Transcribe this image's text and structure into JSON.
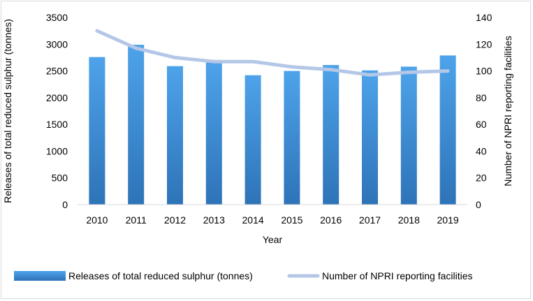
{
  "chart_data": {
    "type": "bar",
    "categories": [
      "2010",
      "2011",
      "2012",
      "2013",
      "2014",
      "2015",
      "2016",
      "2017",
      "2018",
      "2019"
    ],
    "series": [
      {
        "name": "Releases of total reduced sulphur (tonnes)",
        "type": "bar",
        "axis": "left",
        "values": [
          2760,
          2990,
          2590,
          2680,
          2420,
          2500,
          2610,
          2510,
          2580,
          2790
        ],
        "color": "#3d8fd6"
      },
      {
        "name": "Number of NPRI reporting facilities",
        "type": "line",
        "axis": "right",
        "values": [
          130,
          117,
          110,
          107,
          107,
          103,
          101,
          97,
          99,
          100
        ],
        "color": "#b4c7e7"
      }
    ],
    "title": "",
    "xlabel": "Year",
    "ylabel": "Releases of total reduced sulphur (tonnes)",
    "y2label": "Number of NPRI reporting facilities",
    "ylim": [
      0,
      3500
    ],
    "y2lim": [
      0,
      140
    ],
    "yticks": [
      "0",
      "500",
      "1000",
      "1500",
      "2000",
      "2500",
      "3000",
      "3500"
    ],
    "y2ticks": [
      "0",
      "20",
      "40",
      "60",
      "80",
      "100",
      "120",
      "140"
    ],
    "grid": false,
    "legend": "bottom"
  }
}
